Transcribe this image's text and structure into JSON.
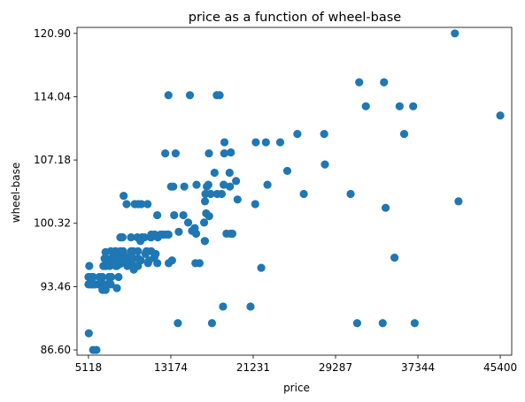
{
  "chart_data": {
    "type": "scatter",
    "title": "price as a function of wheel-base",
    "xlabel": "price",
    "ylabel": "wheel-base",
    "xlim": [
      3998,
      46520
    ],
    "ylim": [
      86.03,
      121.55
    ],
    "x_ticks": [
      5118,
      13174,
      21231,
      29287,
      37344,
      45400
    ],
    "x_tick_labels": [
      "5118",
      "13174",
      "21231",
      "29287",
      "37344",
      "45400"
    ],
    "y_ticks": [
      86.6,
      93.46,
      100.32,
      107.18,
      114.04,
      120.9
    ],
    "y_tick_labels": [
      "86.60",
      "93.46",
      "100.32",
      "107.18",
      "114.04",
      "120.90"
    ],
    "grid": false,
    "marker_color": "#1f77b4",
    "points": [
      [
        5118,
        94.5
      ],
      [
        5118,
        93.7
      ],
      [
        5151,
        88.4
      ],
      [
        5195,
        95.7
      ],
      [
        5348,
        93.7
      ],
      [
        5389,
        93.7
      ],
      [
        5399,
        94.5
      ],
      [
        5499,
        93.7
      ],
      [
        5572,
        86.6
      ],
      [
        5572,
        94.5
      ],
      [
        5652,
        93.7
      ],
      [
        5795,
        93.7
      ],
      [
        5894,
        86.6
      ],
      [
        6095,
        93.7
      ],
      [
        6189,
        94.5
      ],
      [
        6229,
        93.7
      ],
      [
        6295,
        93.7
      ],
      [
        6338,
        93.7
      ],
      [
        6377,
        93.7
      ],
      [
        6479,
        94.5
      ],
      [
        6488,
        93.1
      ],
      [
        6529,
        93.7
      ],
      [
        6575,
        95.7
      ],
      [
        6649,
        93.7
      ],
      [
        6669,
        95.7
      ],
      [
        6692,
        96.5
      ],
      [
        6695,
        93.7
      ],
      [
        6785,
        97.2
      ],
      [
        6795,
        93.1
      ],
      [
        6849,
        95.7
      ],
      [
        6855,
        96.5
      ],
      [
        6918,
        93.7
      ],
      [
        6938,
        93.7
      ],
      [
        6989,
        95.9
      ],
      [
        7053,
        95.9
      ],
      [
        7099,
        95.9
      ],
      [
        7126,
        95.9
      ],
      [
        7129,
        94.5
      ],
      [
        7198,
        95.7
      ],
      [
        7295,
        93.7
      ],
      [
        7299,
        97.3
      ],
      [
        7349,
        94.5
      ],
      [
        7395,
        96.5
      ],
      [
        7463,
        96.3
      ],
      [
        7499,
        97.2
      ],
      [
        7603,
        95.9
      ],
      [
        7609,
        96.9
      ],
      [
        7689,
        96.5
      ],
      [
        7738,
        97.3
      ],
      [
        7775,
        97.3
      ],
      [
        7788,
        96.5
      ],
      [
        7799,
        95.7
      ],
      [
        7895,
        93.3
      ],
      [
        7898,
        95.7
      ],
      [
        7957,
        96.5
      ],
      [
        7975,
        96.5
      ],
      [
        7995,
        97.2
      ],
      [
        8013,
        95.9
      ],
      [
        8058,
        94.5
      ],
      [
        8189,
        96.5
      ],
      [
        8195,
        95.9
      ],
      [
        8238,
        98.8
      ],
      [
        8249,
        97.3
      ],
      [
        8358,
        98.8
      ],
      [
        8449,
        98.8
      ],
      [
        8495,
        97.0
      ],
      [
        8499,
        97.3
      ],
      [
        8558,
        103.3
      ],
      [
        8778,
        96.3
      ],
      [
        8845,
        102.4
      ],
      [
        8916,
        96.5
      ],
      [
        8921,
        95.7
      ],
      [
        8948,
        95.9
      ],
      [
        9095,
        95.9
      ],
      [
        9233,
        96.5
      ],
      [
        9258,
        97.0
      ],
      [
        9279,
        98.8
      ],
      [
        9295,
        97.3
      ],
      [
        9298,
        97.0
      ],
      [
        9370,
        95.9
      ],
      [
        9495,
        97.3
      ],
      [
        9538,
        96.5
      ],
      [
        9549,
        95.3
      ],
      [
        9639,
        102.4
      ],
      [
        9895,
        98.8
      ],
      [
        9959,
        95.7
      ],
      [
        9960,
        97.3
      ],
      [
        9980,
        102.4
      ],
      [
        9989,
        96.5
      ],
      [
        10198,
        98.4
      ],
      [
        10245,
        96.3
      ],
      [
        10295,
        102.4
      ],
      [
        10345,
        98.8
      ],
      [
        10595,
        98.8
      ],
      [
        10698,
        97.0
      ],
      [
        10795,
        97.3
      ],
      [
        10898,
        102.4
      ],
      [
        10945,
        96.0
      ],
      [
        11048,
        96.3
      ],
      [
        11199,
        98.8
      ],
      [
        11245,
        97.3
      ],
      [
        11248,
        98.8
      ],
      [
        11259,
        99.1
      ],
      [
        11549,
        96.6
      ],
      [
        11595,
        99.1
      ],
      [
        11694,
        97.0
      ],
      [
        11845,
        101.2
      ],
      [
        11850,
        96.0
      ],
      [
        11900,
        98.8
      ],
      [
        12170,
        99.1
      ],
      [
        12440,
        99.1
      ],
      [
        12629,
        107.9
      ],
      [
        12764,
        99.1
      ],
      [
        12940,
        114.2
      ],
      [
        12945,
        99.1
      ],
      [
        12964,
        96.0
      ],
      [
        13200,
        104.3
      ],
      [
        13295,
        96.3
      ],
      [
        13415,
        104.3
      ],
      [
        13499,
        101.2
      ],
      [
        13645,
        107.9
      ],
      [
        13860,
        89.5
      ],
      [
        13950,
        99.4
      ],
      [
        14399,
        101.2
      ],
      [
        14489,
        104.3
      ],
      [
        15040,
        114.2
      ],
      [
        14869,
        100.4
      ],
      [
        15250,
        99.5
      ],
      [
        15510,
        99.8
      ],
      [
        15580,
        96.0
      ],
      [
        15645,
        99.2
      ],
      [
        15690,
        104.5
      ],
      [
        16430,
        100.4
      ],
      [
        15985,
        96.0
      ],
      [
        16500,
        98.4
      ],
      [
        16503,
        98.4
      ],
      [
        16515,
        102.7
      ],
      [
        16558,
        103.5
      ],
      [
        16630,
        101.4
      ],
      [
        16695,
        104.3
      ],
      [
        16845,
        104.5
      ],
      [
        16900,
        107.9
      ],
      [
        16925,
        101.1
      ],
      [
        17075,
        103.5
      ],
      [
        17199,
        89.5
      ],
      [
        17450,
        105.8
      ],
      [
        17669,
        114.2
      ],
      [
        17710,
        103.5
      ],
      [
        17950,
        114.2
      ],
      [
        18150,
        103.5
      ],
      [
        18280,
        91.3
      ],
      [
        18344,
        104.5
      ],
      [
        18420,
        109.1
      ],
      [
        18620,
        99.2
      ],
      [
        18920,
        105.8
      ],
      [
        18950,
        104.3
      ],
      [
        19045,
        108.0
      ],
      [
        19699,
        102.9
      ],
      [
        19045,
        99.2
      ],
      [
        18399,
        107.9
      ],
      [
        19195,
        99.2
      ],
      [
        19552,
        104.9
      ],
      [
        20970,
        91.3
      ],
      [
        21485,
        109.1
      ],
      [
        21430,
        102.4
      ],
      [
        22018,
        95.5
      ],
      [
        22470,
        109.1
      ],
      [
        22625,
        104.5
      ],
      [
        23875,
        109.1
      ],
      [
        25552,
        110.0
      ],
      [
        28176,
        110.0
      ],
      [
        31600,
        115.6
      ],
      [
        32250,
        113.0
      ],
      [
        34184,
        102.0
      ],
      [
        34028,
        115.6
      ],
      [
        35550,
        113.0
      ],
      [
        35056,
        96.6
      ],
      [
        36000,
        110.0
      ],
      [
        36880,
        113.0
      ],
      [
        40960,
        120.9
      ],
      [
        41315,
        102.7
      ],
      [
        45400,
        112.0
      ],
      [
        24565,
        106.0
      ],
      [
        26179,
        103.5
      ],
      [
        28248,
        106.7
      ],
      [
        30760,
        103.5
      ],
      [
        31400,
        89.5
      ],
      [
        33900,
        89.5
      ],
      [
        37028,
        89.5
      ]
    ]
  }
}
